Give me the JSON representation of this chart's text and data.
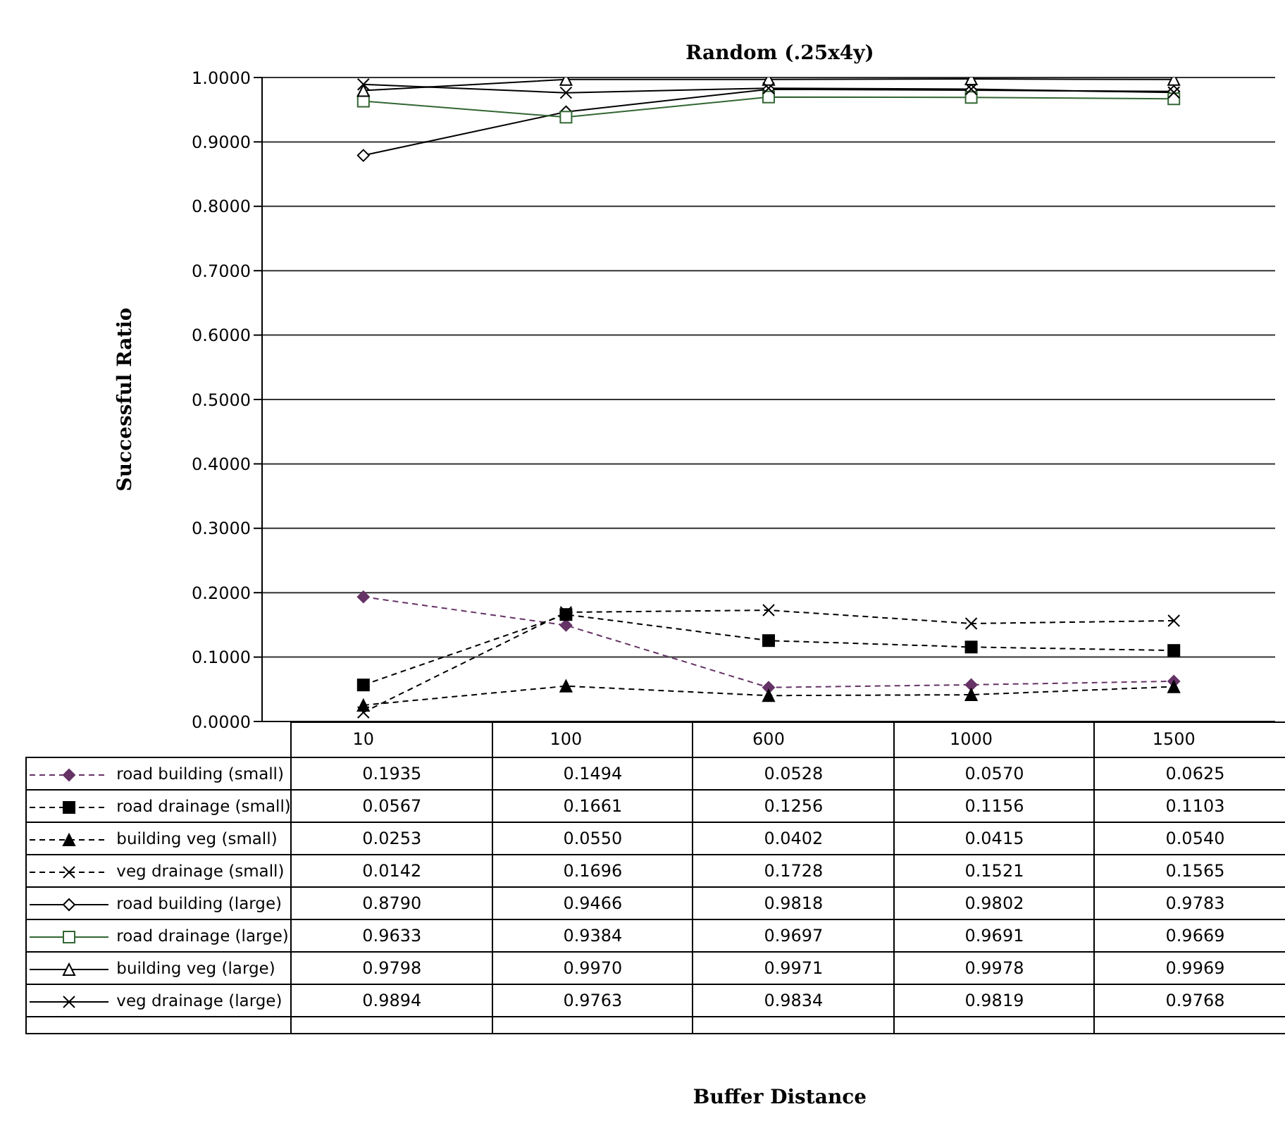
{
  "chart_data": {
    "type": "line",
    "title": "Random (.25x4y)",
    "annotations": [
      "Buffer Distance"
    ],
    "ylabel": "Successful Ratio",
    "categories": [
      "10",
      "100",
      "600",
      "1000",
      "1500"
    ],
    "series": [
      {
        "name": "road building (small)",
        "color": "#663366",
        "marker": "diamond",
        "line_style": "dashed",
        "values": [
          0.1935,
          0.1494,
          0.0528,
          0.057,
          0.0625
        ],
        "value_labels": [
          "0.1935",
          "0.1494",
          "0.0528",
          "0.0570",
          "0.0625"
        ]
      },
      {
        "name": "road drainage (small)",
        "color": "#000000",
        "marker": "square",
        "line_style": "dashed",
        "values": [
          0.0567,
          0.1661,
          0.1256,
          0.1156,
          0.1103
        ],
        "value_labels": [
          "0.0567",
          "0.1661",
          "0.1256",
          "0.1156",
          "0.1103"
        ]
      },
      {
        "name": "building veg (small)",
        "color": "#000000",
        "marker": "triangle",
        "line_style": "dashed",
        "values": [
          0.0253,
          0.055,
          0.0402,
          0.0415,
          0.054
        ],
        "value_labels": [
          "0.0253",
          "0.0550",
          "0.0402",
          "0.0415",
          "0.0540"
        ]
      },
      {
        "name": "veg drainage (small)",
        "color": "#000000",
        "marker": "cross",
        "line_style": "dashed",
        "values": [
          0.0142,
          0.1696,
          0.1728,
          0.1521,
          0.1565
        ],
        "value_labels": [
          "0.0142",
          "0.1696",
          "0.1728",
          "0.1521",
          "0.1565"
        ]
      },
      {
        "name": "road building (large)",
        "color": "#000000",
        "marker": "diamond",
        "line_style": "solid",
        "values": [
          0.879,
          0.9466,
          0.9818,
          0.9802,
          0.9783
        ],
        "value_labels": [
          "0.8790",
          "0.9466",
          "0.9818",
          "0.9802",
          "0.9783"
        ]
      },
      {
        "name": "road drainage (large)",
        "color": "#336633",
        "marker": "square",
        "line_style": "solid",
        "values": [
          0.9633,
          0.9384,
          0.9697,
          0.9691,
          0.9669
        ],
        "value_labels": [
          "0.9633",
          "0.9384",
          "0.9697",
          "0.9691",
          "0.9669"
        ]
      },
      {
        "name": "building veg (large)",
        "color": "#000000",
        "marker": "triangle",
        "line_style": "solid",
        "values": [
          0.9798,
          0.997,
          0.9971,
          0.9978,
          0.9969
        ],
        "value_labels": [
          "0.9798",
          "0.9970",
          "0.9971",
          "0.9978",
          "0.9969"
        ]
      },
      {
        "name": "veg drainage (large)",
        "color": "#000000",
        "marker": "cross",
        "line_style": "solid",
        "values": [
          0.9894,
          0.9763,
          0.9834,
          0.9819,
          0.9768
        ],
        "value_labels": [
          "0.9894",
          "0.9763",
          "0.9834",
          "0.9819",
          "0.9768"
        ]
      }
    ],
    "ylim": [
      0,
      1
    ],
    "yticks": [
      {
        "value": 0,
        "label": "0.0000"
      },
      {
        "value": 0.1,
        "label": "0.1000"
      },
      {
        "value": 0.2,
        "label": "0.2000"
      },
      {
        "value": 0.3,
        "label": "0.3000"
      },
      {
        "value": 0.4,
        "label": "0.4000"
      },
      {
        "value": 0.5,
        "label": "0.5000"
      },
      {
        "value": 0.6,
        "label": "0.6000"
      },
      {
        "value": 0.7,
        "label": "0.7000"
      },
      {
        "value": 0.8,
        "label": "0.8000"
      },
      {
        "value": 0.9,
        "label": "0.9000"
      },
      {
        "value": 1,
        "label": "1.0000"
      }
    ],
    "grid": "y",
    "legend": "bottom"
  }
}
